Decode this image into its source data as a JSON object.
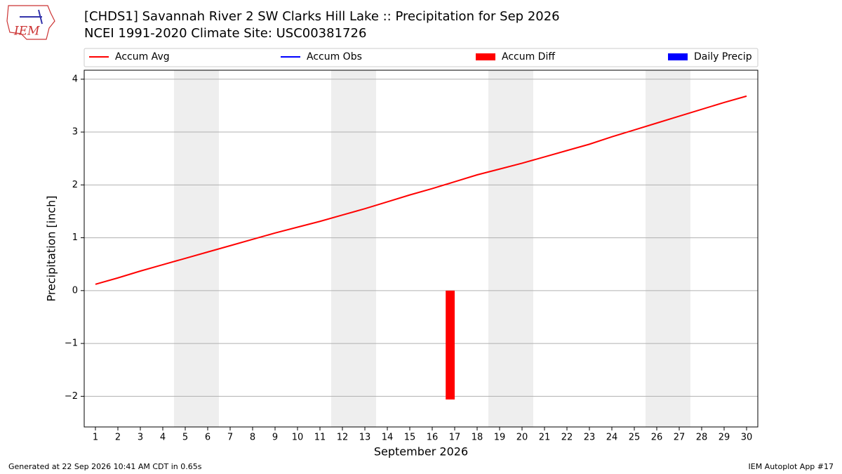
{
  "logo_text": "IEM",
  "footer_left": "Generated at 22 Sep 2026 10:41 AM CDT in 0.65s",
  "footer_right": "IEM Autoplot App #17",
  "chart_data": {
    "type": "line",
    "title": "[CHDS1] Savannah River 2 SW Clarks Hill Lake :: Precipitation for Sep 2026",
    "subtitle": "NCEI 1991-2020 Climate Site: USC00381726",
    "xlabel": "September 2026",
    "ylabel": "Precipitation [inch]",
    "x": [
      1,
      2,
      3,
      4,
      5,
      6,
      7,
      8,
      9,
      10,
      11,
      12,
      13,
      14,
      15,
      16,
      17,
      18,
      19,
      20,
      21,
      22,
      23,
      24,
      25,
      26,
      27,
      28,
      29,
      30
    ],
    "xlim": [
      0.5,
      30.5
    ],
    "xticks": [
      1,
      2,
      3,
      4,
      5,
      6,
      7,
      8,
      9,
      10,
      11,
      12,
      13,
      14,
      15,
      16,
      17,
      18,
      19,
      20,
      21,
      22,
      23,
      24,
      25,
      26,
      27,
      28,
      29,
      30
    ],
    "ylim": [
      -2.58,
      4.17
    ],
    "yticks": [
      {
        "value": -2,
        "label": "−2"
      },
      {
        "value": -1,
        "label": "−1"
      },
      0,
      1,
      2,
      3,
      4
    ],
    "grid": true,
    "shaded_spans": [
      [
        4.5,
        6.5
      ],
      [
        11.5,
        13.5
      ],
      [
        18.5,
        20.5
      ],
      [
        25.5,
        27.5
      ]
    ],
    "series": [
      {
        "name": "Accum Avg",
        "type": "line",
        "color": "#ff0000",
        "values": [
          0.12,
          0.24,
          0.37,
          0.49,
          0.61,
          0.73,
          0.85,
          0.97,
          1.09,
          1.2,
          1.31,
          1.43,
          1.55,
          1.68,
          1.81,
          1.93,
          2.06,
          2.19,
          2.3,
          2.41,
          2.53,
          2.65,
          2.77,
          2.91,
          3.04,
          3.17,
          3.3,
          3.43,
          3.56,
          3.68
        ]
      },
      {
        "name": "Accum Obs",
        "type": "line",
        "color": "#0000ff",
        "values": [
          null,
          null,
          null,
          null,
          null,
          null,
          null,
          null,
          null,
          null,
          null,
          null,
          null,
          null,
          null,
          null,
          null,
          null,
          null,
          null,
          null,
          null,
          null,
          null,
          null,
          null,
          null,
          null,
          null,
          null
        ]
      },
      {
        "name": "Accum Diff",
        "type": "bar",
        "color": "#ff0000",
        "values": [
          null,
          null,
          null,
          null,
          null,
          null,
          null,
          null,
          null,
          null,
          null,
          null,
          null,
          null,
          null,
          null,
          -2.06,
          null,
          null,
          null,
          null,
          null,
          null,
          null,
          null,
          null,
          null,
          null,
          null,
          null
        ]
      },
      {
        "name": "Daily Precip",
        "type": "bar",
        "color": "#0000ff",
        "values": [
          null,
          null,
          null,
          null,
          null,
          null,
          null,
          null,
          null,
          null,
          null,
          null,
          null,
          null,
          null,
          null,
          null,
          null,
          null,
          null,
          null,
          null,
          null,
          null,
          null,
          null,
          null,
          null,
          null,
          null
        ]
      }
    ]
  }
}
